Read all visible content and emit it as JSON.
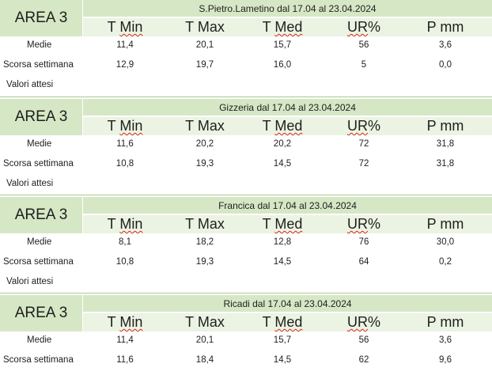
{
  "columns": [
    "T Min",
    "T Max",
    "T Med",
    "UR%",
    "P mm"
  ],
  "tables": [
    {
      "area": "AREA 3",
      "title": "S.Pietro.Lametino dal 17.04 al 23.04.2024",
      "rows": [
        {
          "label": "Medie",
          "values": [
            "11,4",
            "20,1",
            "15,7",
            "56",
            "3,6"
          ]
        },
        {
          "label": "Scorsa settimana",
          "values": [
            "12,9",
            "19,7",
            "16,0",
            "5",
            "0,0"
          ]
        },
        {
          "label": "Valori attesi",
          "values": [
            "",
            "",
            "",
            "",
            ""
          ]
        }
      ]
    },
    {
      "area": "AREA 3",
      "title": "Gizzeria dal 17.04 al 23.04.2024",
      "rows": [
        {
          "label": "Medie",
          "values": [
            "11,6",
            "20,2",
            "20,2",
            "72",
            "31,8"
          ]
        },
        {
          "label": "Scorsa settimana",
          "values": [
            "10,8",
            "19,3",
            "14,5",
            "72",
            "31,8"
          ]
        },
        {
          "label": "Valori attesi",
          "values": [
            "",
            "",
            "",
            "",
            ""
          ]
        }
      ]
    },
    {
      "area": "AREA 3",
      "title": "Francica dal 17.04 al 23.04.2024",
      "rows": [
        {
          "label": "Medie",
          "values": [
            "8,1",
            "18,2",
            "12,8",
            "76",
            "30,0"
          ]
        },
        {
          "label": "Scorsa settimana",
          "values": [
            "10,8",
            "19,3",
            "14,5",
            "64",
            "0,2"
          ]
        },
        {
          "label": "Valori attesi",
          "values": [
            "",
            "",
            "",
            "",
            ""
          ]
        }
      ]
    },
    {
      "area": "AREA 3",
      "title": "Ricadi  dal 17.04 al 23.04.2024",
      "rows": [
        {
          "label": "Medie",
          "values": [
            "11,4",
            "20,1",
            "15,7",
            "56",
            "3,6"
          ]
        },
        {
          "label": "Scorsa settimana",
          "values": [
            "11,6",
            "18,4",
            "14,5",
            "62",
            "9,6"
          ]
        }
      ]
    }
  ]
}
